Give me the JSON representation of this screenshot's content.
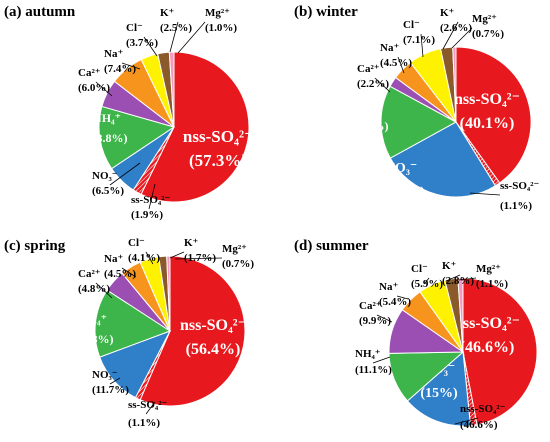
{
  "chart_data": [
    {
      "type": "pie",
      "title": "(a) autumn",
      "slices": [
        {
          "name": "nss-SO₄²⁻",
          "value": 57.3,
          "label": "(57.3%)",
          "color": "#e8191e",
          "hatch": false
        },
        {
          "name": "ss-SO₄²⁻",
          "value": 1.9,
          "label": "(1.9%)",
          "color": "#e8191e",
          "hatch": true
        },
        {
          "name": "NO₃⁻",
          "value": 6.5,
          "label": "(6.5%)",
          "color": "#2f7fc9",
          "hatch": false
        },
        {
          "name": "NH₄⁺",
          "value": 13.8,
          "label": "(13.8%)",
          "color": "#3db54a",
          "hatch": false
        },
        {
          "name": "Ca²⁺",
          "value": 6.0,
          "label": "(6.0%)",
          "color": "#9b4fb3",
          "hatch": false
        },
        {
          "name": "Na⁺",
          "value": 7.4,
          "label": "(7.4%)",
          "color": "#f7941d",
          "hatch": false
        },
        {
          "name": "Cl⁻",
          "value": 3.7,
          "label": "(3.7%)",
          "color": "#fff200",
          "hatch": false
        },
        {
          "name": "K⁺",
          "value": 2.5,
          "label": "(2.5%)",
          "color": "#8b5a2b",
          "hatch": false
        },
        {
          "name": "Mg²⁺",
          "value": 1.0,
          "label": "(1.0%)",
          "color": "#f49ac1",
          "hatch": false
        }
      ]
    },
    {
      "type": "pie",
      "title": "(b) winter",
      "slices": [
        {
          "name": "nss-SO₄²⁻",
          "value": 40.1,
          "label": "(40.1%)",
          "color": "#e8191e",
          "hatch": false
        },
        {
          "name": "ss-SO₄²⁻",
          "value": 1.1,
          "label": "(1.1%)",
          "color": "#e8191e",
          "hatch": true
        },
        {
          "name": "NO₃⁻",
          "value": 25.8,
          "label": "(25.8%)",
          "color": "#2f7fc9",
          "hatch": false
        },
        {
          "name": "NH₄⁺",
          "value": 15.9,
          "label": "(15.9%)",
          "color": "#3db54a",
          "hatch": false
        },
        {
          "name": "Ca²⁺",
          "value": 2.2,
          "label": "(2.2%)",
          "color": "#9b4fb3",
          "hatch": false
        },
        {
          "name": "Na⁺",
          "value": 4.5,
          "label": "(4.5%)",
          "color": "#f7941d",
          "hatch": false
        },
        {
          "name": "Cl⁻",
          "value": 7.1,
          "label": "(7.1%)",
          "color": "#fff200",
          "hatch": false
        },
        {
          "name": "K⁺",
          "value": 2.6,
          "label": "(2.6%)",
          "color": "#8b5a2b",
          "hatch": false
        },
        {
          "name": "Mg²⁺",
          "value": 0.7,
          "label": "(0.7%)",
          "color": "#f49ac1",
          "hatch": false
        }
      ]
    },
    {
      "type": "pie",
      "title": "(c) spring",
      "slices": [
        {
          "name": "nss-SO₄²⁻",
          "value": 56.4,
          "label": "(56.4%)",
          "color": "#e8191e",
          "hatch": false
        },
        {
          "name": "ss-SO₄²⁻",
          "value": 1.1,
          "label": "(1.1%)",
          "color": "#e8191e",
          "hatch": true
        },
        {
          "name": "NO₃⁻",
          "value": 11.7,
          "label": "(11.7%)",
          "color": "#2f7fc9",
          "hatch": false
        },
        {
          "name": "NH₄⁺",
          "value": 14.8,
          "label": "(14.8%)",
          "color": "#3db54a",
          "hatch": false
        },
        {
          "name": "Ca²⁺",
          "value": 4.8,
          "label": "(4.8%)",
          "color": "#9b4fb3",
          "hatch": false
        },
        {
          "name": "Na⁺",
          "value": 4.5,
          "label": "(4.5%)",
          "color": "#f7941d",
          "hatch": false
        },
        {
          "name": "Cl⁻",
          "value": 4.1,
          "label": "(4.1%)",
          "color": "#fff200",
          "hatch": false
        },
        {
          "name": "K⁺",
          "value": 1.7,
          "label": "(1.7%)",
          "color": "#8b5a2b",
          "hatch": false
        },
        {
          "name": "Mg²⁺",
          "value": 0.7,
          "label": "(0.7%)",
          "color": "#f49ac1",
          "hatch": false
        }
      ]
    },
    {
      "type": "pie",
      "title": "(d) summer",
      "slices": [
        {
          "name": "nss-SO₄²⁻",
          "value": 46.6,
          "label": "(46.6%)",
          "color": "#e8191e",
          "hatch": false
        },
        {
          "name": "ss-SO₄²⁻",
          "value": 1.4,
          "label": "(1.4%)",
          "color": "#e8191e",
          "hatch": true
        },
        {
          "name": "NO₃⁻",
          "value": 15,
          "label": "(15%)",
          "color": "#2f7fc9",
          "hatch": false
        },
        {
          "name": "NH₄⁺",
          "value": 11.1,
          "label": "(11.1%)",
          "color": "#3db54a",
          "hatch": false
        },
        {
          "name": "Ca²⁺",
          "value": 9.9,
          "label": "(9.9%)",
          "color": "#9b4fb3",
          "hatch": false
        },
        {
          "name": "Na⁺",
          "value": 5.4,
          "label": "(5.4%)",
          "color": "#f7941d",
          "hatch": false
        },
        {
          "name": "Cl⁻",
          "value": 5.9,
          "label": "(5.9%)",
          "color": "#fff200",
          "hatch": false
        },
        {
          "name": "K⁺",
          "value": 2.8,
          "label": "(2.8%)",
          "color": "#8b5a2b",
          "hatch": false
        },
        {
          "name": "Mg²⁺",
          "value": 1.1,
          "label": "(1.1%)",
          "color": "#f49ac1",
          "hatch": false
        }
      ]
    }
  ]
}
